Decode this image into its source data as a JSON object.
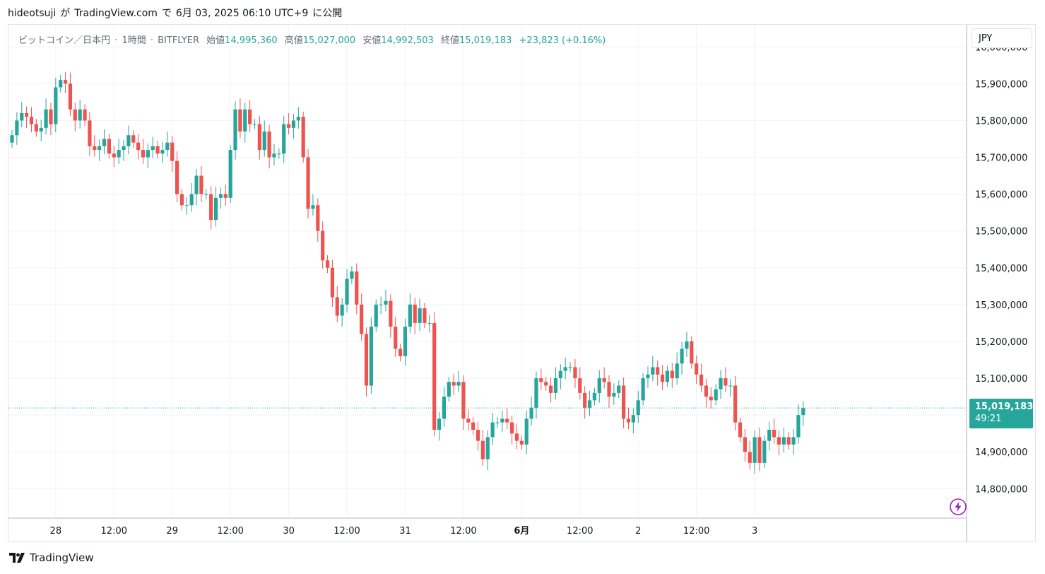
{
  "header": {
    "author": "hideotsuji",
    "ga": "が",
    "site": "TradingView.com",
    "de": "で",
    "datetime": "6月 03, 2025 06:10 UTC+9",
    "ni": "に公開"
  },
  "legend": {
    "symbol": "ビットコイン／日本円",
    "interval": "1時間",
    "exchange": "BITFLYER",
    "dot": "·",
    "open_label": "始値",
    "open": "14,995,360",
    "high_label": "高値",
    "high": "15,027,000",
    "low_label": "安値",
    "low": "14,992,503",
    "close_label": "終値",
    "close": "15,019,183",
    "change": "+23,823 (+0.16%)"
  },
  "currency_button": "JPY",
  "last_price": {
    "value": "15,019,183",
    "countdown": "49:21"
  },
  "footer": {
    "logo_text": "TradingView",
    "logo_icon": "tradingview-logo-icon"
  },
  "colors": {
    "up": "#26a69a",
    "down": "#ef5350",
    "grid": "#f0f3fa",
    "axis_text": "#131722"
  },
  "chart_data": {
    "type": "candlestick",
    "interval": "1h",
    "ylim": [
      14720000,
      16060000
    ],
    "y_ticks": [
      14800000,
      14900000,
      15000000,
      15100000,
      15200000,
      15300000,
      15400000,
      15500000,
      15600000,
      15700000,
      15800000,
      15900000,
      16000000
    ],
    "x_ticks": [
      {
        "label": "28",
        "bar": 9,
        "bold": false
      },
      {
        "label": "12:00",
        "bar": 21,
        "bold": false
      },
      {
        "label": "29",
        "bar": 33,
        "bold": false
      },
      {
        "label": "12:00",
        "bar": 45,
        "bold": false
      },
      {
        "label": "30",
        "bar": 57,
        "bold": false
      },
      {
        "label": "12:00",
        "bar": 69,
        "bold": false
      },
      {
        "label": "31",
        "bar": 81,
        "bold": false
      },
      {
        "label": "12:00",
        "bar": 93,
        "bold": false
      },
      {
        "label": "6月",
        "bar": 105,
        "bold": true
      },
      {
        "label": "12:00",
        "bar": 117,
        "bold": false
      },
      {
        "label": "2",
        "bar": 129,
        "bold": false
      },
      {
        "label": "12:00",
        "bar": 141,
        "bold": false
      },
      {
        "label": "3",
        "bar": 153,
        "bold": false
      }
    ],
    "last_price": 15019183,
    "grid": true,
    "closes": [
      15760000,
      15800000,
      15820000,
      15810000,
      15790000,
      15770000,
      15780000,
      15830000,
      15790000,
      15890000,
      15910000,
      15900000,
      15830000,
      15800000,
      15830000,
      15800000,
      15730000,
      15720000,
      15730000,
      15750000,
      15710000,
      15700000,
      15720000,
      15730000,
      15760000,
      15740000,
      15720000,
      15700000,
      15720000,
      15730000,
      15710000,
      15720000,
      15740000,
      15690000,
      15600000,
      15570000,
      15570000,
      15600000,
      15650000,
      15600000,
      15600000,
      15530000,
      15590000,
      15600000,
      15590000,
      15720000,
      15830000,
      15770000,
      15830000,
      15790000,
      15790000,
      15720000,
      15770000,
      15700000,
      15710000,
      15710000,
      15790000,
      15780000,
      15800000,
      15810000,
      15700000,
      15560000,
      15570000,
      15500000,
      15420000,
      15400000,
      15320000,
      15270000,
      15300000,
      15370000,
      15390000,
      15300000,
      15220000,
      15080000,
      15240000,
      15300000,
      15300000,
      15310000,
      15240000,
      15180000,
      15160000,
      15240000,
      15300000,
      15250000,
      15290000,
      15250000,
      15250000,
      14960000,
      14990000,
      15050000,
      15090000,
      15080000,
      15090000,
      14990000,
      14980000,
      14960000,
      14930000,
      14880000,
      14940000,
      14980000,
      14980000,
      14990000,
      14980000,
      14950000,
      14930000,
      14920000,
      14990000,
      15020000,
      15100000,
      15090000,
      15080000,
      15060000,
      15100000,
      15120000,
      15130000,
      15130000,
      15100000,
      15060000,
      15020000,
      15040000,
      15060000,
      15100000,
      15090000,
      15050000,
      15060000,
      15080000,
      14990000,
      14980000,
      15000000,
      15040000,
      15100000,
      15110000,
      15130000,
      15110000,
      15090000,
      15120000,
      15100000,
      15140000,
      15180000,
      15200000,
      15140000,
      15110000,
      15080000,
      15050000,
      15040000,
      15070000,
      15100000,
      15080000,
      15080000,
      14980000,
      14940000,
      14900000,
      14870000,
      14940000,
      14870000,
      14930000,
      14960000,
      14940000,
      14920000,
      14940000,
      14920000,
      14940000,
      15000000,
      15019183
    ]
  }
}
